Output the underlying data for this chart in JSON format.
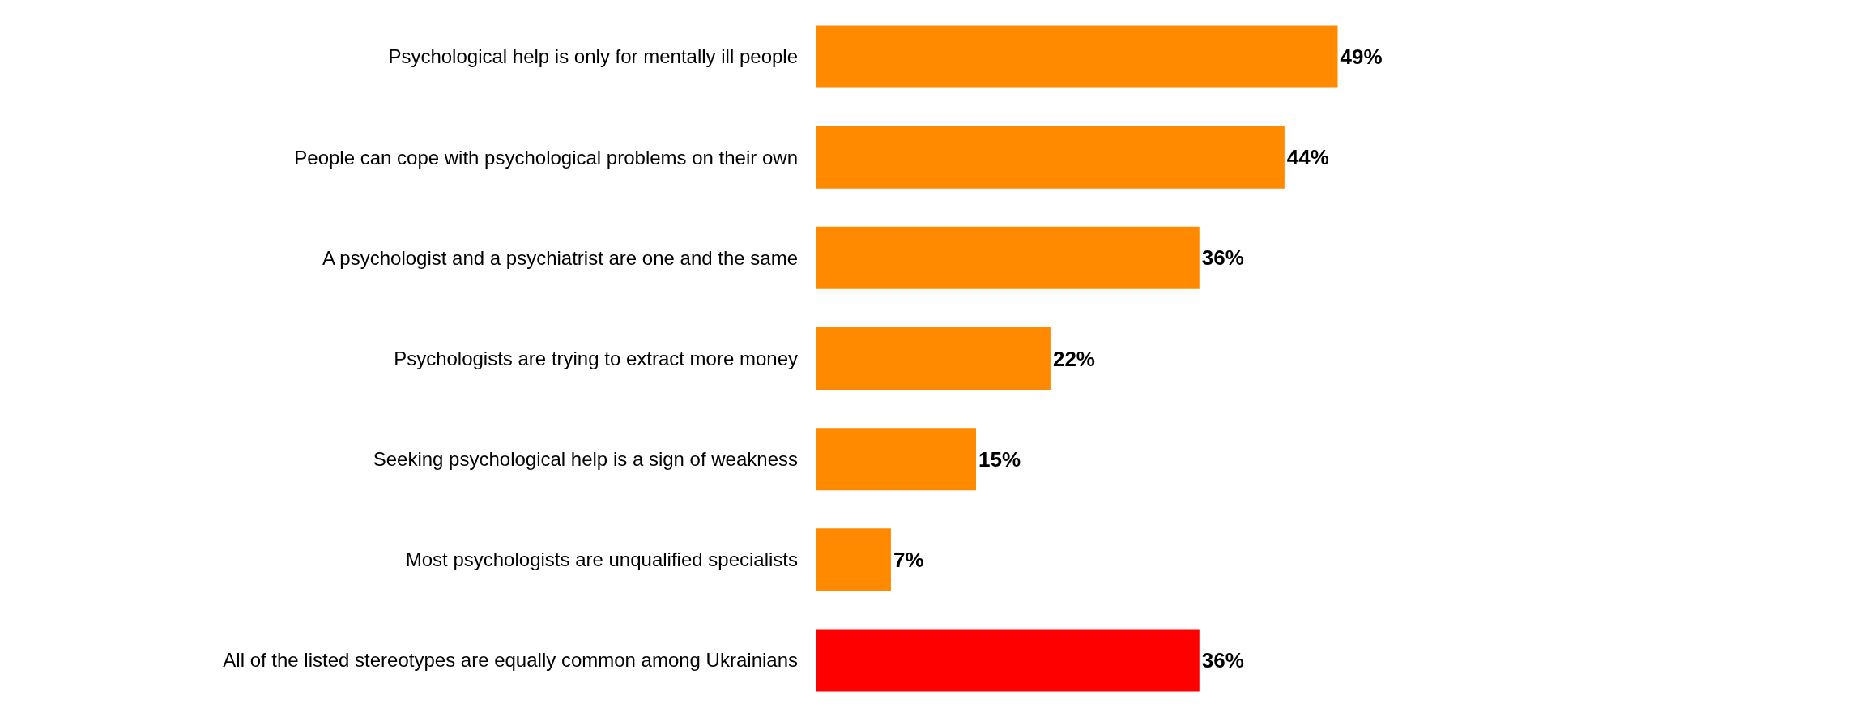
{
  "chart_data": {
    "type": "bar",
    "orientation": "horizontal",
    "categories": [
      "Psychological help is only for mentally ill people",
      "People can cope with psychological problems on their own",
      "A psychologist and a psychiatrist are one and the same",
      "Psychologists are trying to extract more money",
      "Seeking psychological help is a sign of weakness",
      "Most psychologists are unqualified specialists",
      "All of the listed stereotypes are equally common among Ukrainians"
    ],
    "values": [
      49,
      44,
      36,
      22,
      15,
      7,
      36
    ],
    "colors": [
      "#ff8a00",
      "#ff8a00",
      "#ff8a00",
      "#ff8a00",
      "#ff8a00",
      "#ff8a00",
      "#ff0000"
    ],
    "value_labels": [
      "49%",
      "44%",
      "36%",
      "22%",
      "15%",
      "7%",
      "36%"
    ]
  }
}
